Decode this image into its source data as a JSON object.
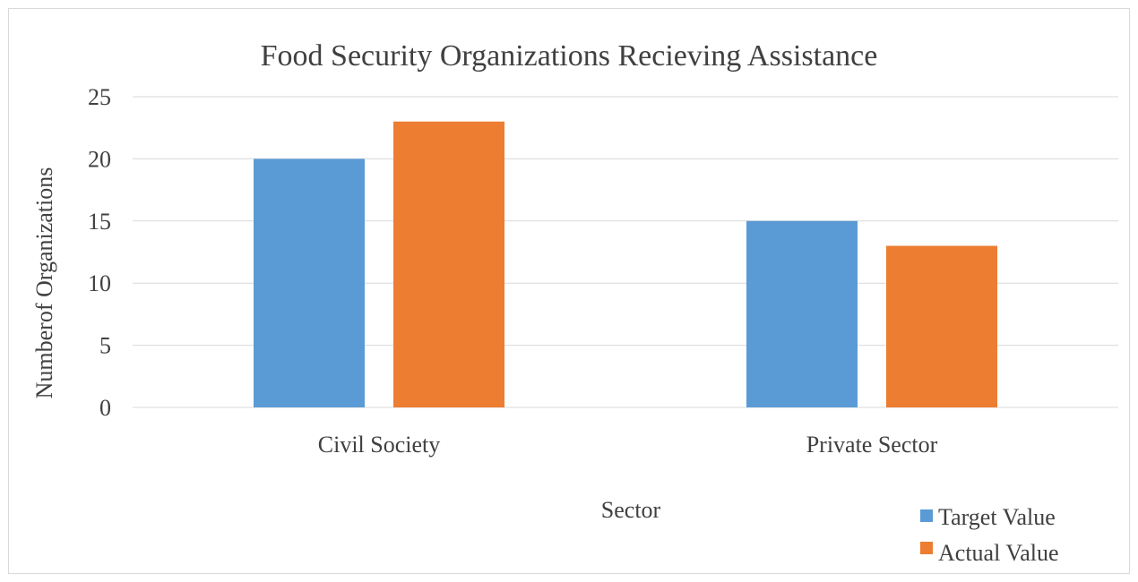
{
  "chart_data": {
    "type": "bar",
    "title": "Food Security Organizations Recieving Assistance",
    "xlabel": "Sector",
    "ylabel": "Numberof Organizations",
    "categories": [
      "Civil Society",
      "Private Sector"
    ],
    "series": [
      {
        "name": "Target Value",
        "values": [
          20,
          15
        ],
        "color": "#5b9bd5"
      },
      {
        "name": "Actual Value",
        "values": [
          23,
          13
        ],
        "color": "#ed7d31"
      }
    ],
    "ylim": [
      0,
      25
    ],
    "yticks": [
      0,
      5,
      10,
      15,
      20,
      25
    ],
    "grid": true,
    "legend": "bottom-right"
  }
}
